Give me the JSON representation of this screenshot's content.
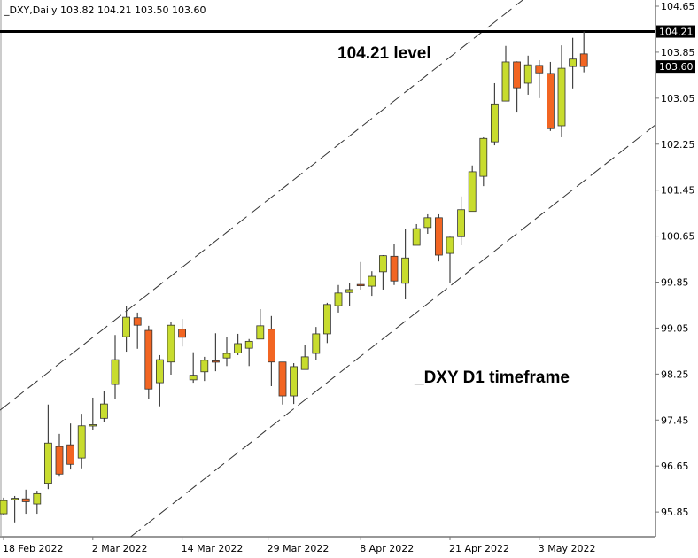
{
  "chart_data": {
    "type": "candlestick",
    "title": "_DXY,Daily  103.82 104.21 103.50 103.60",
    "ylim": [
      95.6,
      104.75
    ],
    "y_ticks": [
      "104.65",
      "103.85",
      "103.05",
      "102.25",
      "101.45",
      "100.65",
      "99.85",
      "99.05",
      "98.25",
      "97.45",
      "96.65",
      "95.85"
    ],
    "x_ticks": [
      "18 Feb 2022",
      "2 Mar 2022",
      "14 Mar 2022",
      "29 Mar 2022",
      "8 Apr 2022",
      "21 Apr 2022",
      "3 May 2022"
    ],
    "price_markers": [
      {
        "label": "104.21",
        "value": 104.21
      },
      {
        "label": "103.60",
        "value": 103.6
      }
    ],
    "horizontal_line": 104.21,
    "annotations": [
      "104.21 level",
      "_DXY D1 timeframe"
    ],
    "colors": {
      "bull": "#c8dc2e",
      "bear": "#f26522",
      "line": "#000000"
    },
    "grid": false,
    "channel": {
      "upper": [
        [
          0,
          97.67
        ],
        [
          44.5,
          104.45
        ]
      ],
      "lower": [
        [
          11.2,
          95.39
        ],
        [
          58.5,
          102.6
        ]
      ]
    },
    "ohlc": [
      [
        95.82,
        96.1,
        95.8,
        96.05
      ],
      [
        96.07,
        96.13,
        95.67,
        96.09
      ],
      [
        96.08,
        96.24,
        95.82,
        96.03
      ],
      [
        95.99,
        96.22,
        95.82,
        96.17
      ],
      [
        96.35,
        97.72,
        96.25,
        97.05
      ],
      [
        96.99,
        97.21,
        96.48,
        96.51
      ],
      [
        97.02,
        97.39,
        96.59,
        96.68
      ],
      [
        96.79,
        97.56,
        96.61,
        97.35
      ],
      [
        97.37,
        97.84,
        97.28,
        97.37
      ],
      [
        97.48,
        97.95,
        97.41,
        97.73
      ],
      [
        98.07,
        98.93,
        97.81,
        98.5
      ],
      [
        98.9,
        99.43,
        98.64,
        99.24
      ],
      [
        99.23,
        99.32,
        98.69,
        99.1
      ],
      [
        99.01,
        99.09,
        97.82,
        97.99
      ],
      [
        98.1,
        98.58,
        97.69,
        98.5
      ],
      [
        98.46,
        99.15,
        98.24,
        99.1
      ],
      [
        99.03,
        99.21,
        98.73,
        98.89
      ],
      [
        98.15,
        98.63,
        98.1,
        98.23
      ],
      [
        98.29,
        98.55,
        98.13,
        98.49
      ],
      [
        98.48,
        98.96,
        98.3,
        98.46
      ],
      [
        98.53,
        98.89,
        98.39,
        98.61
      ],
      [
        98.62,
        98.95,
        98.58,
        98.78
      ],
      [
        98.7,
        98.86,
        98.39,
        98.82
      ],
      [
        98.86,
        99.38,
        98.86,
        99.09
      ],
      [
        99.03,
        99.26,
        98.04,
        98.46
      ],
      [
        98.46,
        98.46,
        97.72,
        97.87
      ],
      [
        97.87,
        98.44,
        97.73,
        98.38
      ],
      [
        98.33,
        98.75,
        98.33,
        98.55
      ],
      [
        98.61,
        99.07,
        98.49,
        98.95
      ],
      [
        98.95,
        99.49,
        98.79,
        99.46
      ],
      [
        99.44,
        99.8,
        99.32,
        99.66
      ],
      [
        99.67,
        99.84,
        99.44,
        99.72
      ],
      [
        99.81,
        100.2,
        99.72,
        99.8
      ],
      [
        99.78,
        100.04,
        99.61,
        99.95
      ],
      [
        100.03,
        100.32,
        99.72,
        100.31
      ],
      [
        100.3,
        100.52,
        99.8,
        99.87
      ],
      [
        99.83,
        100.78,
        99.55,
        100.27
      ],
      [
        100.49,
        100.86,
        100.49,
        100.78
      ],
      [
        100.8,
        101.03,
        100.69,
        100.97
      ],
      [
        100.97,
        101.03,
        100.21,
        100.32
      ],
      [
        100.35,
        100.64,
        99.83,
        100.63
      ],
      [
        100.64,
        101.34,
        100.49,
        101.11
      ],
      [
        101.08,
        101.88,
        101.08,
        101.77
      ],
      [
        101.69,
        102.37,
        101.52,
        102.35
      ],
      [
        102.29,
        103.31,
        102.23,
        102.95
      ],
      [
        103.0,
        103.96,
        103.0,
        103.68
      ],
      [
        103.68,
        103.69,
        102.8,
        103.23
      ],
      [
        103.31,
        103.79,
        103.11,
        103.63
      ],
      [
        103.62,
        103.71,
        103.05,
        103.49
      ],
      [
        103.48,
        103.68,
        102.48,
        102.52
      ],
      [
        102.57,
        103.97,
        102.37,
        103.57
      ],
      [
        103.6,
        104.1,
        103.22,
        103.73
      ],
      [
        103.82,
        104.21,
        103.5,
        103.6
      ]
    ]
  }
}
